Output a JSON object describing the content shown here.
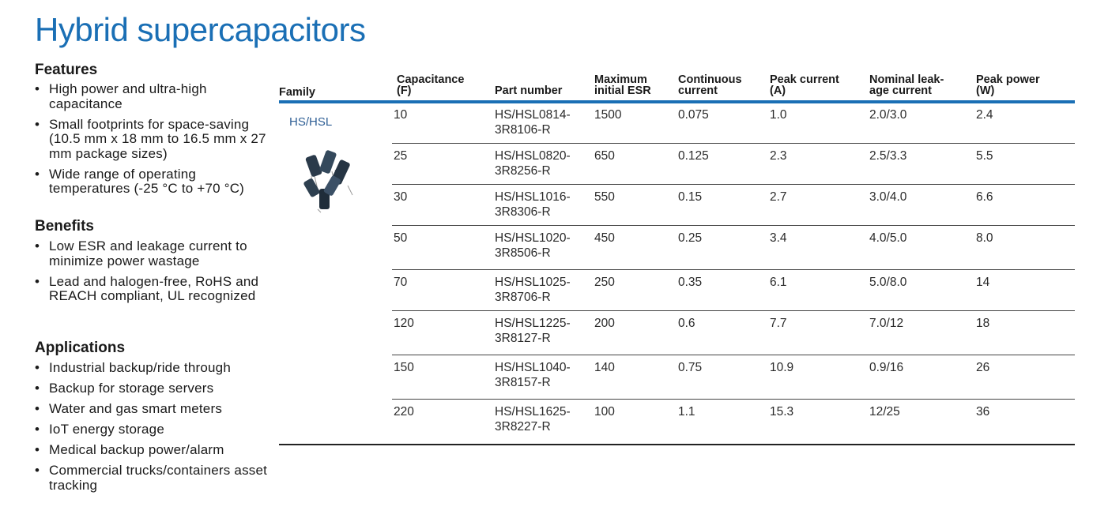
{
  "title": "Hybrid supercapacitors",
  "sections": [
    {
      "heading": "Features",
      "items": [
        "High power and ultra-high capacitance",
        "Small footprints for space-saving (10.5 mm x 18 mm to 16.5 mm x 27 mm package sizes)",
        "Wide range of operating temperatures (-25 °C to +70 °C)"
      ]
    },
    {
      "heading": "Benefits",
      "items": [
        "Low ESR and leakage current to minimize power wastage",
        "Lead and halogen-free, RoHS and REACH compliant, UL recognized"
      ]
    },
    {
      "heading": "Applications",
      "items": [
        "Industrial backup/ride through",
        "Backup for storage servers",
        "Water and gas smart meters",
        "IoT energy storage",
        "Medical backup power/alarm",
        "Commercial trucks/containers asset tracking"
      ]
    }
  ],
  "table": {
    "headers": [
      [
        "Family"
      ],
      [
        "Capacitance",
        "(F)"
      ],
      [
        "Part number"
      ],
      [
        "Maximum",
        "initial ESR"
      ],
      [
        "Continuous",
        "current"
      ],
      [
        "Peak current",
        "(A)"
      ],
      [
        "Nominal leak-",
        "age current"
      ],
      [
        "Peak power",
        "(W)"
      ]
    ],
    "family": "HS/HSL",
    "rows": [
      [
        "10",
        [
          "HS/HSL0814-",
          "3R8106-R"
        ],
        "1500",
        "0.075",
        "1.0",
        "2.0/3.0",
        "2.4"
      ],
      [
        "25",
        [
          "HS/HSL0820-",
          "3R8256-R"
        ],
        "650",
        "0.125",
        "2.3",
        "2.5/3.3",
        "5.5"
      ],
      [
        "30",
        [
          "HS/HSL1016-",
          "3R8306-R"
        ],
        "550",
        "0.15",
        "2.7",
        "3.0/4.0",
        "6.6"
      ],
      [
        "50",
        [
          "HS/HSL1020-",
          "3R8506-R"
        ],
        "450",
        "0.25",
        "3.4",
        "4.0/5.0",
        "8.0"
      ],
      [
        "70",
        [
          "HS/HSL1025-",
          "3R8706-R"
        ],
        "250",
        "0.35",
        "6.1",
        "5.0/8.0",
        "14"
      ],
      [
        "120",
        [
          "HS/HSL1225-",
          "3R8127-R"
        ],
        "200",
        "0.6",
        "7.7",
        "7.0/12",
        "18"
      ],
      [
        "150",
        [
          "HS/HSL1040-",
          "3R8157-R"
        ],
        "140",
        "0.75",
        "10.9",
        "0.9/16",
        "26"
      ],
      [
        "220",
        [
          "HS/HSL1625-",
          "3R8227-R"
        ],
        "100",
        "1.1",
        "15.3",
        "12/25",
        "36"
      ]
    ]
  }
}
